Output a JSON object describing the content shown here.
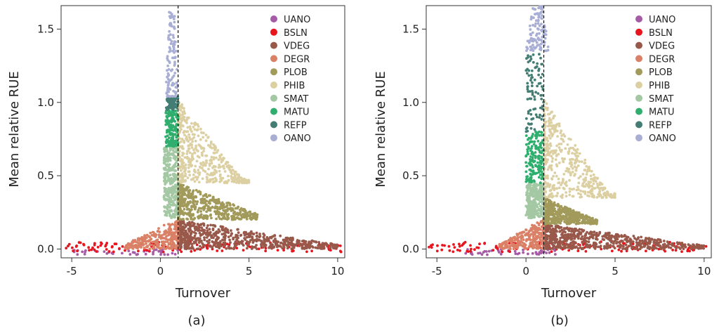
{
  "chart_data": [
    {
      "type": "scatter",
      "panel": "(a)",
      "caption": "(a)",
      "xlabel": "Turnover",
      "ylabel": "Mean relative RUE",
      "xlim": [
        -5.6,
        10.4
      ],
      "ylim": [
        -0.06,
        1.66
      ],
      "xticks": [
        -5,
        0,
        5,
        10
      ],
      "xtick_labels": [
        "-5",
        "0",
        "5",
        "10"
      ],
      "yticks": [
        0.0,
        0.5,
        1.0,
        1.5
      ],
      "ytick_labels": [
        "0.0",
        "0.5",
        "1.0",
        "1.5"
      ],
      "vline_x": 1,
      "legend": [
        "UANO",
        "BSLN",
        "VDEG",
        "DEGR",
        "PLOB",
        "PHIB",
        "SMAT",
        "MATU",
        "REFP",
        "OANO"
      ],
      "legend_position": "top-right",
      "series": [
        {
          "name": "UANO",
          "color": "#a65ba6",
          "x_range": [
            -5.0,
            1.0
          ],
          "y_range": [
            -0.04,
            0.0
          ]
        },
        {
          "name": "BSLN",
          "color": "#e8151f",
          "x_range": [
            -5.5,
            10.2
          ],
          "y_range": [
            -0.02,
            0.05
          ]
        },
        {
          "name": "VDEG",
          "color": "#98584a",
          "x_range": [
            1.0,
            10.0
          ],
          "y_range": [
            0.0,
            0.2
          ]
        },
        {
          "name": "DEGR",
          "color": "#d98066",
          "x_range": [
            -2.0,
            1.0
          ],
          "y_range": [
            0.0,
            0.21
          ]
        },
        {
          "name": "PLOB",
          "color": "#a29a5a",
          "x_range": [
            1.0,
            5.5
          ],
          "y_range": [
            0.2,
            0.45
          ]
        },
        {
          "name": "PHIB",
          "color": "#dccfa2",
          "x_range": [
            1.0,
            5.0
          ],
          "y_range": [
            0.45,
            1.02
          ]
        },
        {
          "name": "SMAT",
          "color": "#a3c8a3",
          "x_range": [
            0.2,
            1.0
          ],
          "y_range": [
            0.21,
            0.7
          ]
        },
        {
          "name": "MATU",
          "color": "#2fae6d",
          "x_range": [
            0.3,
            1.0
          ],
          "y_range": [
            0.7,
            0.95
          ]
        },
        {
          "name": "REFP",
          "color": "#437d73",
          "x_range": [
            0.3,
            1.0
          ],
          "y_range": [
            0.95,
            1.04
          ]
        },
        {
          "name": "OANO",
          "color": "#a8aed4",
          "x_range": [
            0.3,
            1.0
          ],
          "y_range": [
            1.04,
            1.62
          ]
        }
      ]
    },
    {
      "type": "scatter",
      "panel": "(b)",
      "caption": "(b)",
      "xlabel": "Turnover",
      "ylabel": "Mean relative RUE",
      "xlim": [
        -5.6,
        10.4
      ],
      "ylim": [
        -0.06,
        1.66
      ],
      "xticks": [
        -5,
        0,
        5,
        10
      ],
      "xtick_labels": [
        "-5",
        "0",
        "5",
        "10"
      ],
      "yticks": [
        0.0,
        0.5,
        1.0,
        1.5
      ],
      "ytick_labels": [
        "0.0",
        "0.5",
        "1.0",
        "1.5"
      ],
      "vline_x": 1,
      "legend": [
        "UANO",
        "BSLN",
        "VDEG",
        "DEGR",
        "PLOB",
        "PHIB",
        "SMAT",
        "MATU",
        "REFP",
        "OANO"
      ],
      "legend_position": "top-right",
      "series": [
        {
          "name": "UANO",
          "color": "#a65ba6",
          "x_range": [
            -3.5,
            1.8
          ],
          "y_range": [
            -0.04,
            0.0
          ]
        },
        {
          "name": "BSLN",
          "color": "#e8151f",
          "x_range": [
            -5.5,
            10.3
          ],
          "y_range": [
            -0.02,
            0.05
          ]
        },
        {
          "name": "VDEG",
          "color": "#98584a",
          "x_range": [
            1.0,
            10.0
          ],
          "y_range": [
            0.0,
            0.17
          ]
        },
        {
          "name": "DEGR",
          "color": "#d98066",
          "x_range": [
            -1.5,
            1.0
          ],
          "y_range": [
            0.0,
            0.21
          ]
        },
        {
          "name": "PLOB",
          "color": "#a29a5a",
          "x_range": [
            1.0,
            4.0
          ],
          "y_range": [
            0.17,
            0.35
          ]
        },
        {
          "name": "PHIB",
          "color": "#dccfa2",
          "x_range": [
            1.0,
            5.0
          ],
          "y_range": [
            0.35,
            1.02
          ]
        },
        {
          "name": "SMAT",
          "color": "#a3c8a3",
          "x_range": [
            0.0,
            1.0
          ],
          "y_range": [
            0.21,
            0.45
          ]
        },
        {
          "name": "MATU",
          "color": "#2fae6d",
          "x_range": [
            0.0,
            1.0
          ],
          "y_range": [
            0.45,
            0.8
          ]
        },
        {
          "name": "REFP",
          "color": "#437d73",
          "x_range": [
            0.0,
            1.0
          ],
          "y_range": [
            0.8,
            1.35
          ]
        },
        {
          "name": "OANO",
          "color": "#a8aed4",
          "x_range": [
            0.0,
            1.3
          ],
          "y_range": [
            1.35,
            1.66
          ]
        }
      ]
    }
  ]
}
